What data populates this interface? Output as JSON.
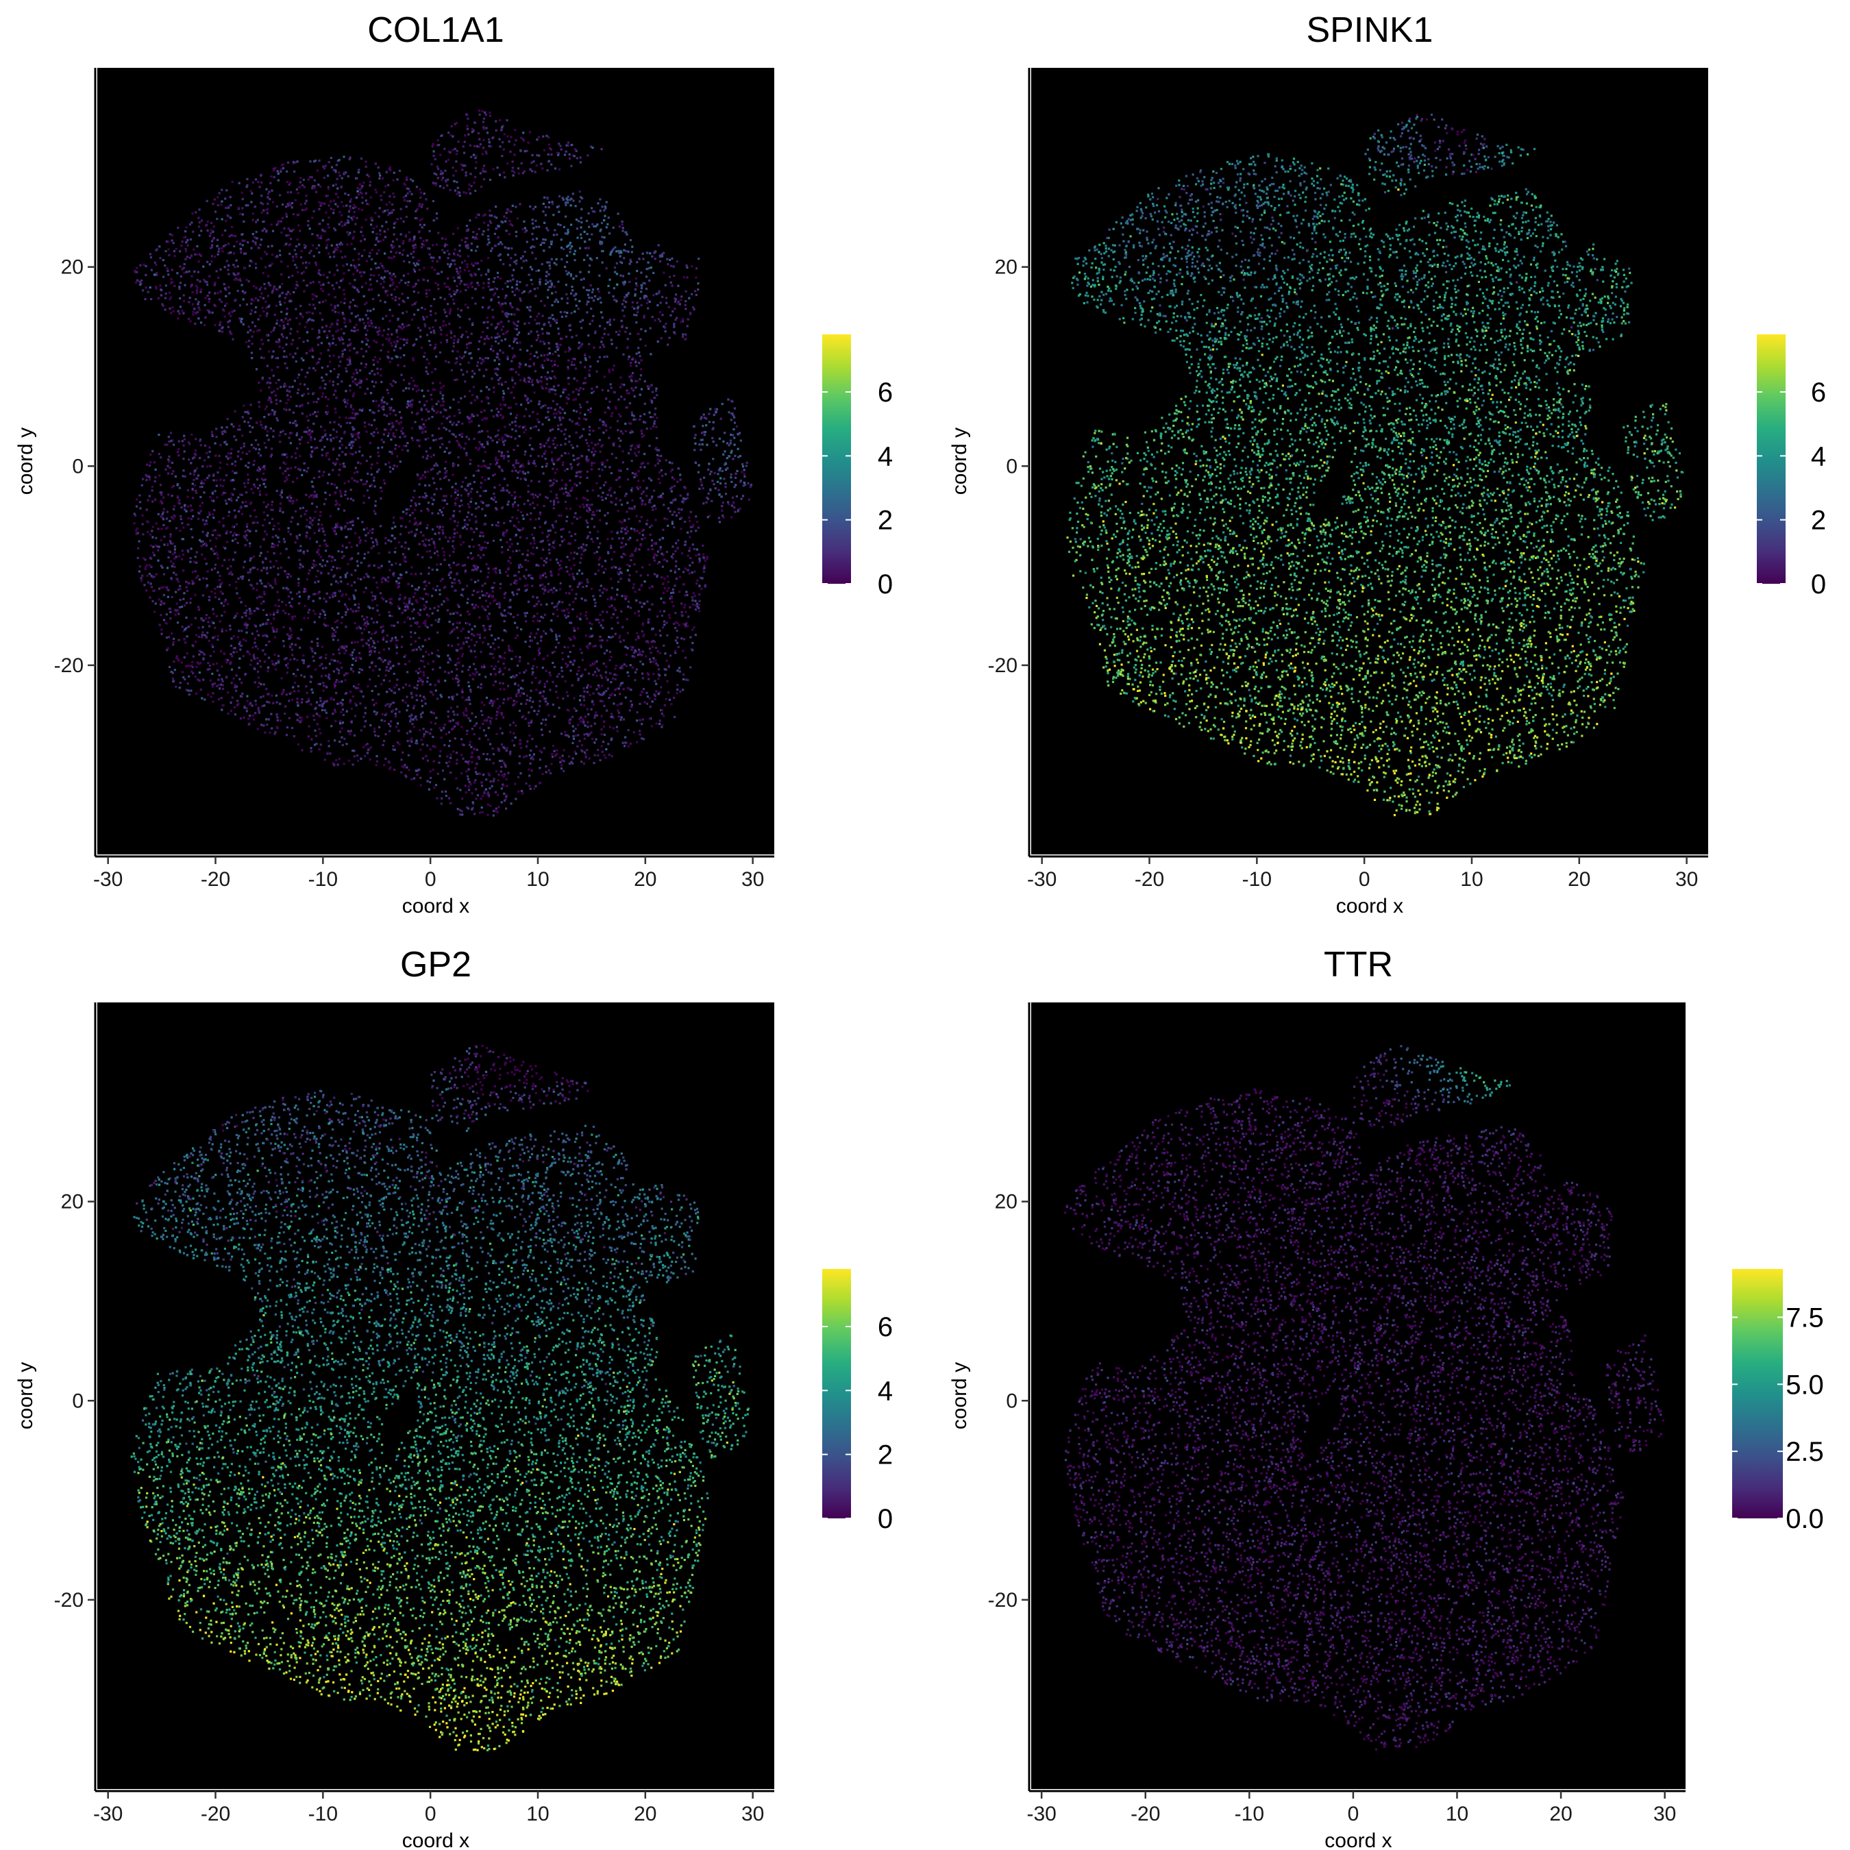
{
  "chart_data": [
    {
      "type": "scatter",
      "title": "COL1A1",
      "xlabel": "coord x",
      "ylabel": "coord y",
      "xlim": [
        -31,
        32
      ],
      "ylim": [
        -39,
        40
      ],
      "xticks": [
        -30,
        -20,
        -10,
        0,
        10,
        20,
        30
      ],
      "yticks": [
        -20,
        0,
        20
      ],
      "background": "#000000",
      "grid": false,
      "colorscale": "viridis",
      "legend": {
        "position": "right",
        "min": 0,
        "max": 7.8,
        "ticks": [
          0,
          2,
          4,
          6
        ],
        "tick_labels": [
          "0",
          "2",
          "4",
          "6"
        ]
      },
      "expression": {
        "mean": 0.6,
        "spread": 0.7,
        "regional": [
          {
            "x": 15,
            "y": 22,
            "r": 7,
            "delta": 1.6
          },
          {
            "x": 27,
            "y": 2,
            "r": 4,
            "delta": 1.5
          }
        ]
      }
    },
    {
      "type": "scatter",
      "title": "SPINK1",
      "xlabel": "coord x",
      "ylabel": "coord y",
      "xlim": [
        -31,
        32
      ],
      "ylim": [
        -39,
        40
      ],
      "xticks": [
        -30,
        -20,
        -10,
        0,
        10,
        20,
        30
      ],
      "yticks": [
        -20,
        0,
        20
      ],
      "background": "#000000",
      "grid": false,
      "colorscale": "viridis",
      "legend": {
        "position": "right",
        "min": 0,
        "max": 7.8,
        "ticks": [
          0,
          2,
          4,
          6
        ],
        "tick_labels": [
          "0",
          "2",
          "4",
          "6"
        ]
      },
      "expression": {
        "mean": 5.0,
        "spread": 1.0,
        "gradient_y": -0.04,
        "regional": [
          {
            "x": 8,
            "y": 34,
            "r": 5,
            "delta": -3.0
          },
          {
            "x": -15,
            "y": 24,
            "r": 10,
            "delta": -1.5
          }
        ]
      }
    },
    {
      "type": "scatter",
      "title": "GP2",
      "xlabel": "coord x",
      "ylabel": "coord y",
      "xlim": [
        -31,
        32
      ],
      "ylim": [
        -39,
        40
      ],
      "xticks": [
        -30,
        -20,
        -10,
        0,
        10,
        20,
        30
      ],
      "yticks": [
        -20,
        0,
        20
      ],
      "background": "#000000",
      "grid": false,
      "colorscale": "viridis",
      "legend": {
        "position": "right",
        "min": 0,
        "max": 7.8,
        "ticks": [
          0,
          2,
          4,
          6
        ],
        "tick_labels": [
          "0",
          "2",
          "4",
          "6"
        ]
      },
      "expression": {
        "mean": 4.2,
        "spread": 1.0,
        "gradient_y": -0.08,
        "regional": [
          {
            "x": 8,
            "y": 34,
            "r": 5,
            "delta": -2.5
          },
          {
            "x": 25,
            "y": 2,
            "r": 4,
            "delta": 1.0
          }
        ]
      }
    },
    {
      "type": "scatter",
      "title": "TTR",
      "xlabel": "coord x",
      "ylabel": "coord y",
      "xlim": [
        -31,
        32
      ],
      "ylim": [
        -39,
        40
      ],
      "xticks": [
        -30,
        -20,
        -10,
        0,
        10,
        20,
        30
      ],
      "yticks": [
        -20,
        0,
        20
      ],
      "background": "#000000",
      "grid": false,
      "colorscale": "viridis",
      "legend": {
        "position": "right",
        "min": 0,
        "max": 9.3,
        "ticks": [
          0,
          2.5,
          5,
          7.5
        ],
        "tick_labels": [
          "0.0",
          "2.5",
          "5.0",
          "7.5"
        ]
      },
      "expression": {
        "mean": 0.5,
        "spread": 0.6,
        "regional": [
          {
            "x": 13,
            "y": 33,
            "r": 4,
            "delta": 5.5
          },
          {
            "x": 7,
            "y": 35,
            "r": 4,
            "delta": 2.5
          }
        ]
      }
    }
  ]
}
